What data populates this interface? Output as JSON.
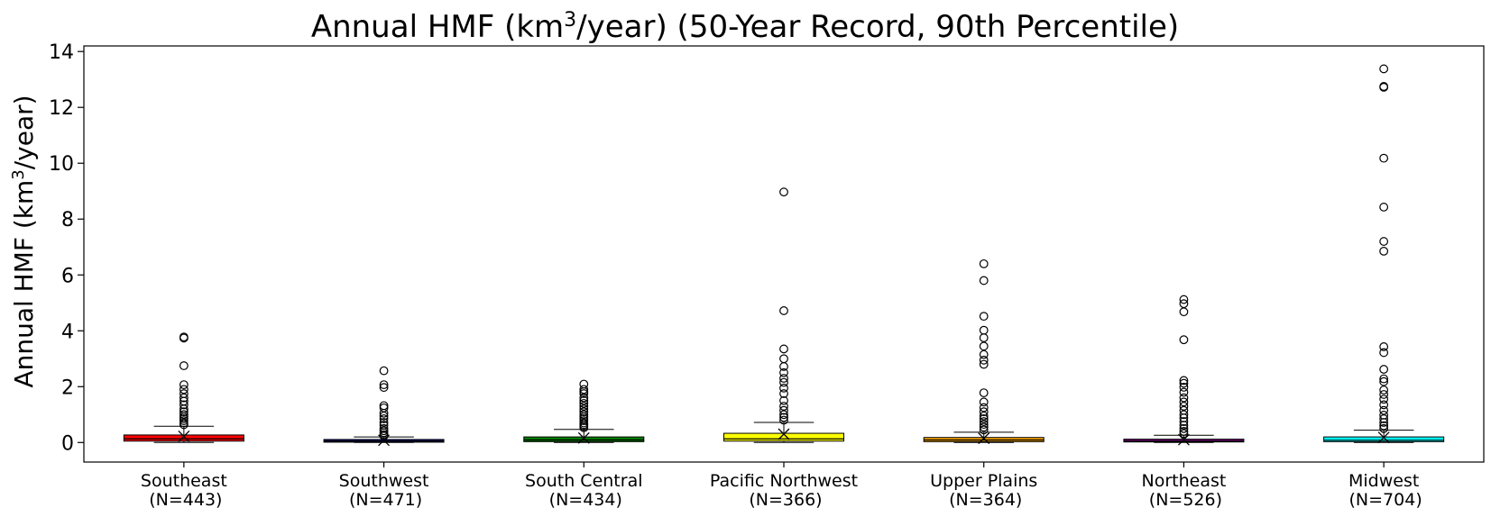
{
  "chart_data": {
    "type": "box",
    "title": {
      "prefix": "Annual HMF (km",
      "sup": "3",
      "suffix": "/year) (50-Year Record, 90th Percentile)"
    },
    "ylabel": {
      "prefix": "Annual HMF (km",
      "sup": "3",
      "suffix": "/year)"
    },
    "ylim": [
      -0.7,
      14.2
    ],
    "yticks": [
      0,
      2,
      4,
      6,
      8,
      10,
      12,
      14
    ],
    "grid": false,
    "legend": "none",
    "categories": [
      {
        "name": "Southeast",
        "n_label": "(N=443)",
        "color": "#ff0000",
        "q1": 0.05,
        "median": 0.13,
        "q3": 0.27,
        "whisker_low": 0.0,
        "whisker_high": 0.58,
        "mean": 0.22,
        "outliers": [
          3.78,
          3.74,
          2.75,
          2.07,
          1.9,
          1.75,
          1.6,
          1.48,
          1.35,
          1.2,
          1.1,
          1.0,
          0.92,
          0.85,
          0.78,
          0.7,
          0.64
        ]
      },
      {
        "name": "Southwest",
        "n_label": "(N=471)",
        "color": "#00007f",
        "q1": 0.02,
        "median": 0.05,
        "q3": 0.1,
        "whisker_low": 0.0,
        "whisker_high": 0.2,
        "mean": 0.08,
        "outliers": [
          2.57,
          2.07,
          1.97,
          1.32,
          1.24,
          1.05,
          0.95,
          0.85,
          0.72,
          0.62,
          0.5,
          0.42,
          0.35,
          0.28,
          0.24
        ]
      },
      {
        "name": "South Central",
        "n_label": "(N=434)",
        "color": "#007f00",
        "q1": 0.03,
        "median": 0.09,
        "q3": 0.2,
        "whisker_low": 0.0,
        "whisker_high": 0.47,
        "mean": 0.16,
        "outliers": [
          2.09,
          1.9,
          1.82,
          1.75,
          1.6,
          1.5,
          1.4,
          1.3,
          1.2,
          1.1,
          1.0,
          0.92,
          0.85,
          0.78,
          0.7,
          0.64,
          0.58,
          0.53
        ]
      },
      {
        "name": "Pacific Northwest",
        "n_label": "(N=366)",
        "color": "#ffff00",
        "q1": 0.05,
        "median": 0.13,
        "q3": 0.33,
        "whisker_low": 0.0,
        "whisker_high": 0.72,
        "mean": 0.3,
        "outliers": [
          8.97,
          4.72,
          3.35,
          3.0,
          2.72,
          2.5,
          2.3,
          2.15,
          1.95,
          1.75,
          1.5,
          1.3,
          1.15,
          1.0,
          0.9,
          0.8
        ]
      },
      {
        "name": "Upper Plains",
        "n_label": "(N=364)",
        "color": "#ffa500",
        "q1": 0.03,
        "median": 0.09,
        "q3": 0.18,
        "whisker_low": 0.0,
        "whisker_high": 0.37,
        "mean": 0.15,
        "outliers": [
          6.4,
          5.8,
          4.52,
          4.02,
          3.75,
          3.45,
          3.15,
          2.95,
          2.8,
          1.78,
          1.45,
          1.25,
          1.1,
          0.95,
          0.85,
          0.75,
          0.65,
          0.55,
          0.45
        ]
      },
      {
        "name": "Northeast",
        "n_label": "(N=526)",
        "color": "#7f007f",
        "q1": 0.02,
        "median": 0.05,
        "q3": 0.12,
        "whisker_low": 0.0,
        "whisker_high": 0.26,
        "mean": 0.1,
        "outliers": [
          5.12,
          4.97,
          4.68,
          3.68,
          2.22,
          2.12,
          1.98,
          1.8,
          1.6,
          1.45,
          1.3,
          1.15,
          1.0,
          0.88,
          0.75,
          0.62,
          0.5,
          0.4,
          0.32
        ]
      },
      {
        "name": "Midwest",
        "n_label": "(N=704)",
        "color": "#00ffff",
        "q1": 0.03,
        "median": 0.08,
        "q3": 0.2,
        "whisker_low": 0.0,
        "whisker_high": 0.44,
        "mean": 0.18,
        "outliers": [
          13.38,
          12.75,
          12.72,
          10.18,
          8.43,
          7.2,
          6.85,
          3.43,
          3.22,
          2.62,
          2.28,
          2.18,
          1.88,
          1.72,
          1.55,
          1.35,
          1.15,
          0.98,
          0.85,
          0.72,
          0.6,
          0.5
        ]
      }
    ]
  }
}
